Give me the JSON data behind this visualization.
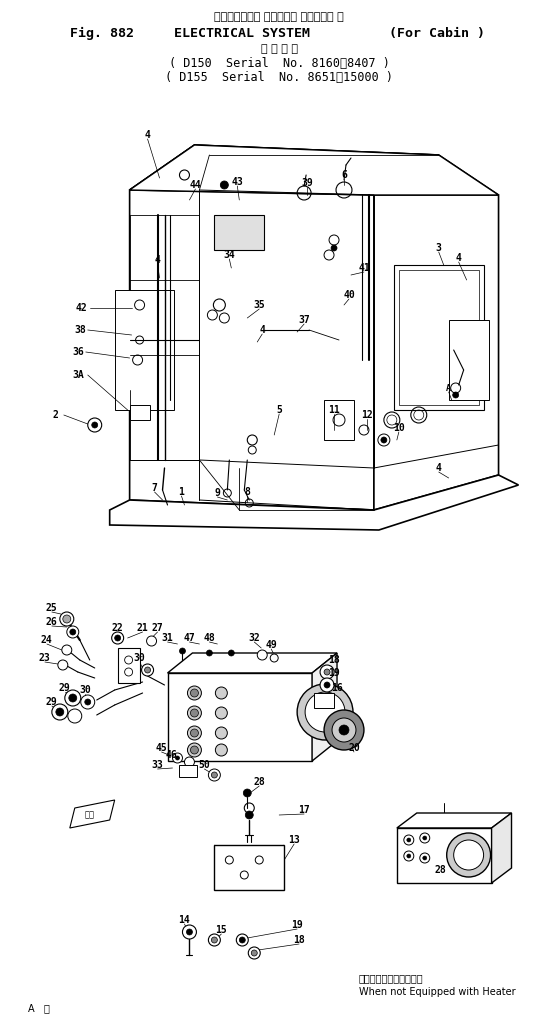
{
  "title_line1": "エレクトリカル システム（ キャビン用 ）",
  "title_line2_a": "Fig. 882",
  "title_line2_b": "ELECTRICAL SYSTEM",
  "title_line2_c": "(For Cabin )",
  "title_line3": "適 用 号 機",
  "title_line4": "( D150  Serial  No. 8160～8407 )",
  "title_line5": "( D155  Serial  No. 8651～15000 )",
  "footer_left": "A   視",
  "footer_note_jp": "ヒーター装置のないとき",
  "footer_note_en": "When not Equipped with Heater",
  "bg_color": "#ffffff"
}
